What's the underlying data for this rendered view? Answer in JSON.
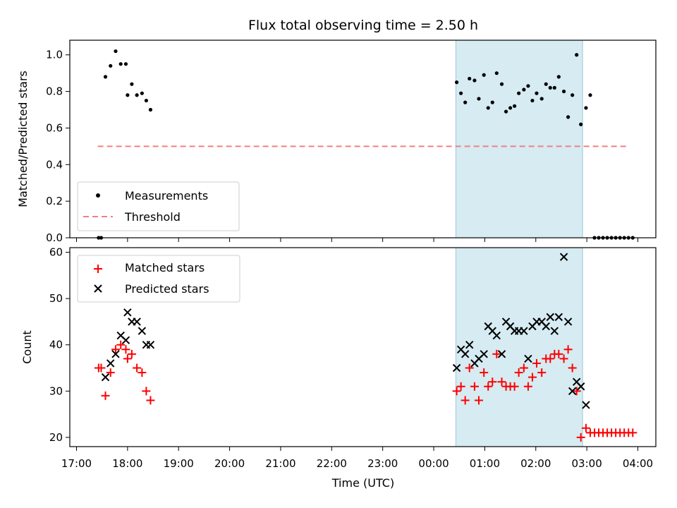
{
  "title": "Flux total observing time = 2.50 h",
  "xlabel": "Time (UTC)",
  "x_tick_labels": [
    "17:00",
    "18:00",
    "19:00",
    "20:00",
    "21:00",
    "22:00",
    "23:00",
    "00:00",
    "01:00",
    "02:00",
    "03:00",
    "04:00"
  ],
  "colors": {
    "measurement": "#000000",
    "threshold": "#f08080",
    "matched": "#ff0000",
    "predicted": "#000000",
    "span": "#add8e6"
  },
  "chart_data": [
    {
      "type": "scatter",
      "ylabel": "Matched/Predicted stars",
      "ylim": [
        0,
        1.08
      ],
      "yticks": [
        0.0,
        0.2,
        0.4,
        0.6,
        0.8,
        1.0
      ],
      "y_tick_labels": [
        "0.0",
        "0.2",
        "0.4",
        "0.6",
        "0.8",
        "1.0"
      ],
      "legend": {
        "position": "lower-left",
        "entries": [
          "Measurements",
          "Threshold"
        ]
      },
      "highlight_span": {
        "start": "00:26",
        "end": "02:55"
      },
      "threshold": {
        "name": "Threshold",
        "value": 0.5,
        "start": "17:25",
        "end": "03:50"
      },
      "series": [
        {
          "name": "Measurements",
          "points": [
            [
              "17:26",
              0.0
            ],
            [
              "17:29",
              0.0
            ],
            [
              "17:34",
              0.88
            ],
            [
              "17:40",
              0.94
            ],
            [
              "17:46",
              1.02
            ],
            [
              "17:52",
              0.95
            ],
            [
              "17:58",
              0.95
            ],
            [
              "18:00",
              0.78
            ],
            [
              "18:05",
              0.84
            ],
            [
              "18:11",
              0.78
            ],
            [
              "18:17",
              0.79
            ],
            [
              "18:22",
              0.75
            ],
            [
              "18:27",
              0.7
            ],
            [
              "00:27",
              0.85
            ],
            [
              "00:32",
              0.79
            ],
            [
              "00:37",
              0.74
            ],
            [
              "00:42",
              0.87
            ],
            [
              "00:48",
              0.86
            ],
            [
              "00:53",
              0.76
            ],
            [
              "00:59",
              0.89
            ],
            [
              "01:04",
              0.71
            ],
            [
              "01:09",
              0.74
            ],
            [
              "01:14",
              0.9
            ],
            [
              "01:20",
              0.84
            ],
            [
              "01:25",
              0.69
            ],
            [
              "01:30",
              0.71
            ],
            [
              "01:35",
              0.72
            ],
            [
              "01:40",
              0.79
            ],
            [
              "01:46",
              0.81
            ],
            [
              "01:51",
              0.83
            ],
            [
              "01:56",
              0.75
            ],
            [
              "02:01",
              0.79
            ],
            [
              "02:07",
              0.76
            ],
            [
              "02:12",
              0.84
            ],
            [
              "02:17",
              0.82
            ],
            [
              "02:22",
              0.82
            ],
            [
              "02:27",
              0.88
            ],
            [
              "02:33",
              0.8
            ],
            [
              "02:38",
              0.66
            ],
            [
              "02:43",
              0.78
            ],
            [
              "02:48",
              1.0
            ],
            [
              "02:53",
              0.62
            ],
            [
              "02:59",
              0.71
            ],
            [
              "03:04",
              0.78
            ],
            [
              "03:09",
              0.0
            ],
            [
              "03:14",
              0.0
            ],
            [
              "03:19",
              0.0
            ],
            [
              "03:24",
              0.0
            ],
            [
              "03:29",
              0.0
            ],
            [
              "03:34",
              0.0
            ],
            [
              "03:39",
              0.0
            ],
            [
              "03:44",
              0.0
            ],
            [
              "03:49",
              0.0
            ],
            [
              "03:54",
              0.0
            ]
          ]
        }
      ]
    },
    {
      "type": "scatter",
      "ylabel": "Count",
      "ylim": [
        18,
        61
      ],
      "yticks": [
        20,
        30,
        40,
        50,
        60
      ],
      "y_tick_labels": [
        "20",
        "30",
        "40",
        "50",
        "60"
      ],
      "legend": {
        "position": "top-left",
        "entries": [
          "Matched stars",
          "Predicted stars"
        ]
      },
      "highlight_span": {
        "start": "00:26",
        "end": "02:55"
      },
      "series": [
        {
          "name": "Matched stars",
          "points": [
            [
              "17:26",
              35
            ],
            [
              "17:29",
              35
            ],
            [
              "17:34",
              29
            ],
            [
              "17:40",
              34
            ],
            [
              "17:46",
              39
            ],
            [
              "17:52",
              40
            ],
            [
              "17:58",
              39
            ],
            [
              "18:00",
              37
            ],
            [
              "18:05",
              38
            ],
            [
              "18:11",
              35
            ],
            [
              "18:17",
              34
            ],
            [
              "18:22",
              30
            ],
            [
              "18:27",
              28
            ],
            [
              "00:27",
              30
            ],
            [
              "00:32",
              31
            ],
            [
              "00:37",
              28
            ],
            [
              "00:42",
              35
            ],
            [
              "00:48",
              31
            ],
            [
              "00:53",
              28
            ],
            [
              "00:59",
              34
            ],
            [
              "01:04",
              31
            ],
            [
              "01:09",
              32
            ],
            [
              "01:14",
              38
            ],
            [
              "01:20",
              32
            ],
            [
              "01:25",
              31
            ],
            [
              "01:30",
              31
            ],
            [
              "01:35",
              31
            ],
            [
              "01:40",
              34
            ],
            [
              "01:46",
              35
            ],
            [
              "01:51",
              31
            ],
            [
              "01:56",
              33
            ],
            [
              "02:01",
              36
            ],
            [
              "02:07",
              34
            ],
            [
              "02:12",
              37
            ],
            [
              "02:17",
              37
            ],
            [
              "02:22",
              38
            ],
            [
              "02:27",
              38
            ],
            [
              "02:33",
              37
            ],
            [
              "02:38",
              39
            ],
            [
              "02:43",
              35
            ],
            [
              "02:48",
              30
            ],
            [
              "02:53",
              20
            ],
            [
              "02:59",
              22
            ],
            [
              "03:04",
              21
            ],
            [
              "03:09",
              21
            ],
            [
              "03:14",
              21
            ],
            [
              "03:19",
              21
            ],
            [
              "03:24",
              21
            ],
            [
              "03:29",
              21
            ],
            [
              "03:34",
              21
            ],
            [
              "03:39",
              21
            ],
            [
              "03:44",
              21
            ],
            [
              "03:49",
              21
            ],
            [
              "03:54",
              21
            ]
          ]
        },
        {
          "name": "Predicted stars",
          "points": [
            [
              "17:34",
              33
            ],
            [
              "17:40",
              36
            ],
            [
              "17:46",
              38
            ],
            [
              "17:52",
              42
            ],
            [
              "17:58",
              41
            ],
            [
              "18:00",
              47
            ],
            [
              "18:05",
              45
            ],
            [
              "18:11",
              45
            ],
            [
              "18:17",
              43
            ],
            [
              "18:22",
              40
            ],
            [
              "18:27",
              40
            ],
            [
              "00:27",
              35
            ],
            [
              "00:32",
              39
            ],
            [
              "00:37",
              38
            ],
            [
              "00:42",
              40
            ],
            [
              "00:48",
              36
            ],
            [
              "00:53",
              37
            ],
            [
              "00:59",
              38
            ],
            [
              "01:04",
              44
            ],
            [
              "01:09",
              43
            ],
            [
              "01:14",
              42
            ],
            [
              "01:20",
              38
            ],
            [
              "01:25",
              45
            ],
            [
              "01:30",
              44
            ],
            [
              "01:35",
              43
            ],
            [
              "01:40",
              43
            ],
            [
              "01:46",
              43
            ],
            [
              "01:51",
              37
            ],
            [
              "01:56",
              44
            ],
            [
              "02:01",
              45
            ],
            [
              "02:07",
              45
            ],
            [
              "02:12",
              44
            ],
            [
              "02:17",
              46
            ],
            [
              "02:22",
              43
            ],
            [
              "02:27",
              46
            ],
            [
              "02:33",
              59
            ],
            [
              "02:38",
              45
            ],
            [
              "02:43",
              30
            ],
            [
              "02:48",
              32
            ],
            [
              "02:53",
              31
            ],
            [
              "02:59",
              27
            ]
          ]
        }
      ]
    }
  ]
}
